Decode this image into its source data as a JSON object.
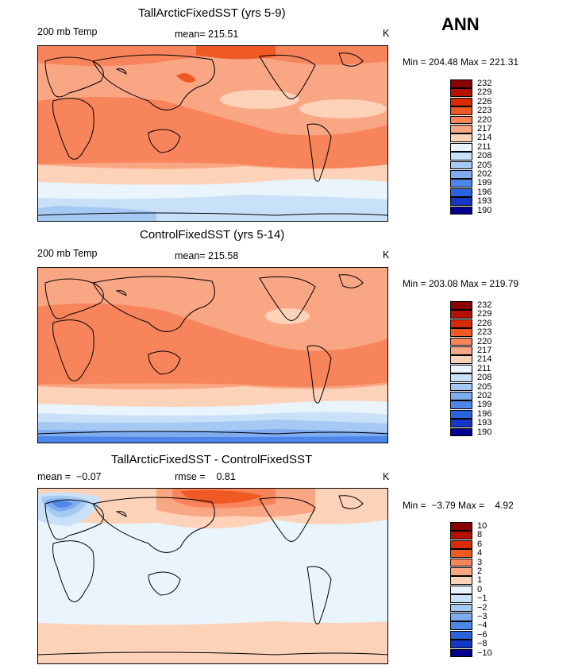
{
  "season": "ANN",
  "variable_label": "200 mb Temp",
  "units": "K",
  "panels": [
    {
      "title": "TallArcticFixedSST (yrs 5-9)",
      "left_label": "200 mb Temp",
      "stat": "mean= 215.51",
      "units": "K",
      "minmax": "Min = 204.48 Max = 221.31",
      "levels": [
        "232",
        "229",
        "226",
        "223",
        "220",
        "217",
        "214",
        "211",
        "208",
        "205",
        "202",
        "199",
        "196",
        "193",
        "190"
      ]
    },
    {
      "title": "ControlFixedSST (yrs 5-14)",
      "left_label": "200 mb Temp",
      "stat": "mean= 215.58",
      "units": "K",
      "minmax": "Min = 203.08 Max = 219.79",
      "levels": [
        "232",
        "229",
        "226",
        "223",
        "220",
        "217",
        "214",
        "211",
        "208",
        "205",
        "202",
        "199",
        "196",
        "193",
        "190"
      ]
    },
    {
      "title": "TallArcticFixedSST - ControlFixedSST",
      "left_label": "mean =  −0.07",
      "stat": "rmse =    0.81",
      "units": "K",
      "minmax": "Min =  −3.79 Max =    4.92",
      "levels": [
        "10",
        "8",
        "6",
        "4",
        "3",
        "2",
        "1",
        "0",
        "−1",
        "−2",
        "−3",
        "−4",
        "−6",
        "−8",
        "−10"
      ]
    }
  ],
  "colors": {
    "scale": [
      "#8a0000",
      "#b31200",
      "#d72a05",
      "#ef5a24",
      "#f7845a",
      "#f9a684",
      "#fcd2b8",
      "#eaf4fc",
      "#c9e1f8",
      "#a5c9f3",
      "#7facef",
      "#4d86e8",
      "#2b63dc",
      "#1437c6",
      "#000090"
    ],
    "background": "#ffffff"
  }
}
